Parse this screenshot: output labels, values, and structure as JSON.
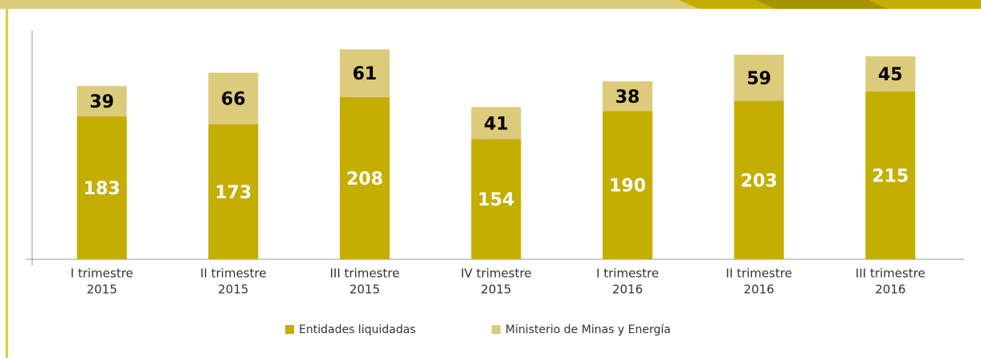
{
  "chart_data": {
    "type": "stacked_bar",
    "categories": [
      [
        "I trimestre",
        "2015"
      ],
      [
        "II trimestre",
        "2015"
      ],
      [
        "III trimestre",
        "2015"
      ],
      [
        "IV trimestre",
        "2015"
      ],
      [
        "I trimestre",
        "2016"
      ],
      [
        "II trimestre",
        "2016"
      ],
      [
        "III trimestre",
        "2016"
      ]
    ],
    "series": [
      {
        "name": "Entidades liquidadas",
        "color": "#c4ae00",
        "label_color": "#ffffff",
        "values": [
          183,
          173,
          208,
          154,
          190,
          203,
          215
        ]
      },
      {
        "name": "Ministerio de Minas y Energía",
        "color": "#dccb7a",
        "label_color": "#000000",
        "values": [
          39,
          66,
          61,
          41,
          38,
          59,
          45
        ]
      }
    ],
    "ylim": [
      0,
      290
    ],
    "legend": "bottom"
  }
}
